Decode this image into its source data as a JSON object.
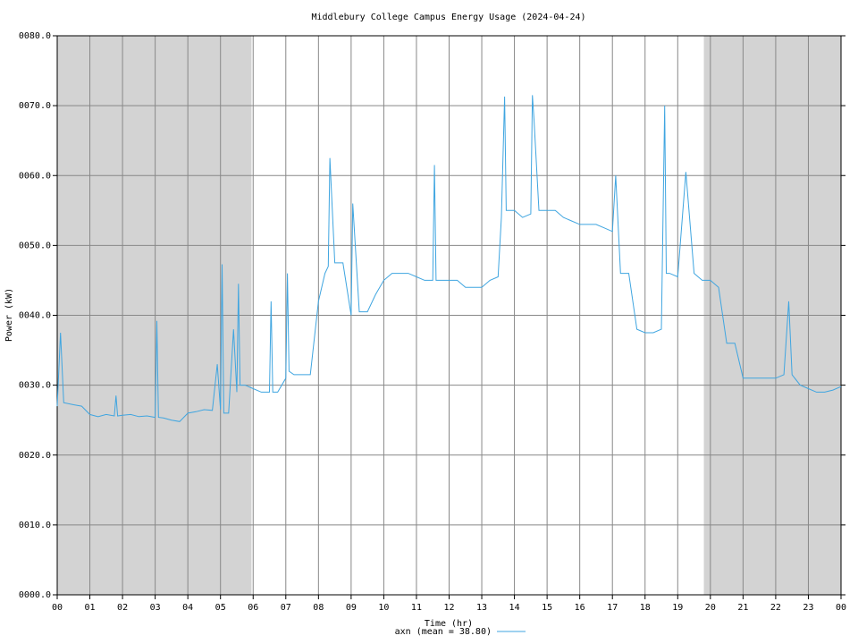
{
  "chart_data": {
    "type": "line",
    "title": "Middlebury College Campus Energy Usage (2024-04-24)",
    "x_label": "Time (hr)",
    "y_label": "Power (kW)",
    "x": [
      0,
      0.1,
      0.2,
      0.5,
      0.75,
      1,
      1.25,
      1.5,
      1.75,
      1.8,
      1.85,
      2,
      2.25,
      2.5,
      2.75,
      3,
      3.05,
      3.1,
      3.25,
      3.5,
      3.75,
      4,
      4.25,
      4.5,
      4.75,
      4.9,
      5,
      5.05,
      5.1,
      5.25,
      5.4,
      5.5,
      5.55,
      5.6,
      5.75,
      6,
      6.25,
      6.5,
      6.55,
      6.6,
      6.75,
      7,
      7.05,
      7.1,
      7.25,
      7.5,
      7.75,
      8,
      8.2,
      8.3,
      8.35,
      8.5,
      8.75,
      9,
      9.05,
      9.25,
      9.5,
      9.75,
      10,
      10.25,
      10.5,
      10.75,
      11,
      11.25,
      11.5,
      11.55,
      11.6,
      11.75,
      12,
      12.25,
      12.5,
      12.75,
      13,
      13.25,
      13.5,
      13.6,
      13.7,
      13.75,
      14,
      14.25,
      14.5,
      14.55,
      14.6,
      14.75,
      15,
      15.25,
      15.5,
      15.75,
      16,
      16.25,
      16.5,
      16.75,
      17,
      17.1,
      17.25,
      17.5,
      17.75,
      18,
      18.25,
      18.5,
      18.6,
      18.65,
      18.75,
      19,
      19.25,
      19.5,
      19.75,
      20,
      20.25,
      20.5,
      20.75,
      21,
      21.25,
      21.5,
      21.75,
      22,
      22.25,
      22.4,
      22.5,
      22.75,
      23,
      23.25,
      23.5,
      23.75,
      24
    ],
    "series": [
      {
        "name": "axn (mean = 38.80)",
        "color": "#3fa5e0",
        "values": [
          27,
          37.5,
          27.5,
          27.2,
          27,
          25.8,
          25.5,
          25.8,
          25.6,
          28.5,
          25.6,
          25.7,
          25.8,
          25.5,
          25.6,
          25.4,
          39.2,
          25.4,
          25.3,
          25,
          24.8,
          26,
          26.2,
          26.5,
          26.4,
          33,
          26.5,
          47.3,
          26,
          26,
          38,
          29,
          44.5,
          30,
          30,
          29.5,
          29,
          29,
          42,
          29,
          29,
          31,
          46,
          32,
          31.5,
          31.5,
          31.5,
          42,
          46,
          47,
          62.5,
          47.5,
          47.5,
          40,
          56,
          40.5,
          40.5,
          43,
          45,
          46,
          46,
          46,
          45.5,
          45,
          45,
          61.5,
          45,
          45,
          45,
          45,
          44,
          44,
          44,
          45,
          45.5,
          54,
          71.3,
          55,
          55,
          54,
          54.5,
          71.5,
          68,
          55,
          55,
          55,
          54,
          53.5,
          53,
          53,
          53,
          52.5,
          52,
          60,
          46,
          46,
          38,
          37.5,
          37.5,
          38,
          70,
          46,
          46,
          45.5,
          60.5,
          46,
          45,
          45,
          44,
          36,
          36,
          31,
          31,
          31,
          31,
          31,
          31.5,
          42,
          31.5,
          30,
          29.5,
          29,
          29,
          29.3,
          29.8
        ]
      }
    ],
    "night_periods": [
      [
        0,
        5.95
      ],
      [
        19.8,
        24
      ]
    ],
    "night_color": "#d3d3d3",
    "xlim": [
      0,
      24
    ],
    "ylim": [
      0,
      80
    ],
    "xticks": [
      {
        "value": 0,
        "label": "00"
      },
      {
        "value": 1,
        "label": "01"
      },
      {
        "value": 2,
        "label": "02"
      },
      {
        "value": 3,
        "label": "03"
      },
      {
        "value": 4,
        "label": "04"
      },
      {
        "value": 5,
        "label": "05"
      },
      {
        "value": 6,
        "label": "06"
      },
      {
        "value": 7,
        "label": "07"
      },
      {
        "value": 8,
        "label": "08"
      },
      {
        "value": 9,
        "label": "09"
      },
      {
        "value": 10,
        "label": "10"
      },
      {
        "value": 11,
        "label": "11"
      },
      {
        "value": 12,
        "label": "12"
      },
      {
        "value": 13,
        "label": "13"
      },
      {
        "value": 14,
        "label": "14"
      },
      {
        "value": 15,
        "label": "15"
      },
      {
        "value": 16,
        "label": "16"
      },
      {
        "value": 17,
        "label": "17"
      },
      {
        "value": 18,
        "label": "18"
      },
      {
        "value": 19,
        "label": "19"
      },
      {
        "value": 20,
        "label": "20"
      },
      {
        "value": 21,
        "label": "21"
      },
      {
        "value": 22,
        "label": "22"
      },
      {
        "value": 23,
        "label": "23"
      },
      {
        "value": 24,
        "label": "00"
      }
    ],
    "yticks": [
      {
        "value": 0,
        "label": "0000.0"
      },
      {
        "value": 10,
        "label": "0010.0"
      },
      {
        "value": 20,
        "label": "0020.0"
      },
      {
        "value": 30,
        "label": "0030.0"
      },
      {
        "value": 40,
        "label": "0040.0"
      },
      {
        "value": 50,
        "label": "0050.0"
      },
      {
        "value": 60,
        "label": "0060.0"
      },
      {
        "value": 70,
        "label": "0070.0"
      },
      {
        "value": 80,
        "label": "0080.0"
      }
    ],
    "grid": true
  }
}
